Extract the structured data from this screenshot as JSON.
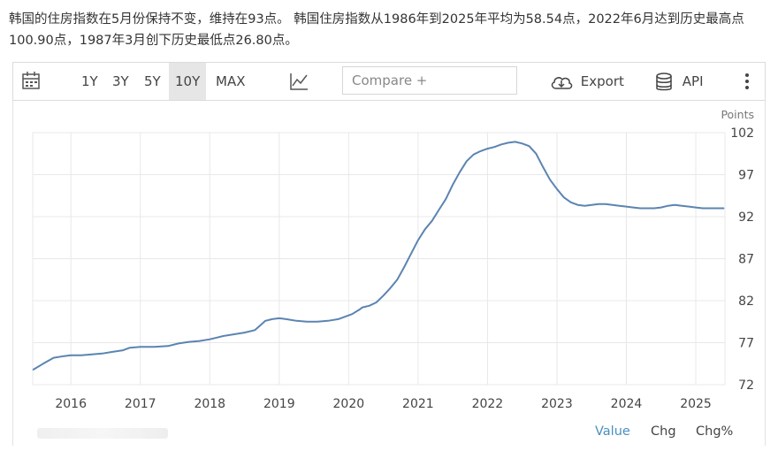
{
  "headline": "韩国的住房指数在5月份保持不变，维持在93点。 韩国住房指数从1986年到2025年平均为58.54点，2022年6月达到历史最高点100.90点，1987年3月创下历史最低点26.80点。",
  "toolbar": {
    "ranges": [
      {
        "label": "1Y",
        "active": false
      },
      {
        "label": "3Y",
        "active": false
      },
      {
        "label": "5Y",
        "active": false
      },
      {
        "label": "10Y",
        "active": true
      },
      {
        "label": "MAX",
        "active": false
      }
    ],
    "compare_placeholder": "Compare +",
    "export_label": "Export",
    "api_label": "API",
    "icons": [
      "calendar-icon",
      "line-chart-icon",
      "cloud-download-icon",
      "database-icon",
      "more-vertical-icon"
    ]
  },
  "bottom_tabs": [
    {
      "label": "Value",
      "active": true
    },
    {
      "label": "Chg",
      "active": false
    },
    {
      "label": "Chg%",
      "active": false
    }
  ],
  "colors": {
    "line": "#5b84b1",
    "grid": "#e8e8e8",
    "active_tab": "#4a8fc1"
  },
  "chart_data": {
    "type": "line",
    "units_label": "Points",
    "ylim": [
      72,
      102
    ],
    "yticks": [
      102,
      97,
      92,
      87,
      82,
      77,
      72
    ],
    "xlim": [
      2015.45,
      2025.42
    ],
    "xticks": [
      2016,
      2017,
      2018,
      2019,
      2020,
      2021,
      2022,
      2023,
      2024,
      2025
    ],
    "grid": true,
    "axis_position": "right",
    "series": [
      {
        "x": [
          2015.46,
          2015.6,
          2015.75,
          2015.9,
          2016.0,
          2016.15,
          2016.3,
          2016.45,
          2016.6,
          2016.75,
          2016.85,
          2017.0,
          2017.2,
          2017.4,
          2017.55,
          2017.7,
          2017.85,
          2018.0,
          2018.1,
          2018.2,
          2018.35,
          2018.5,
          2018.65,
          2018.72,
          2018.8,
          2018.9,
          2019.0,
          2019.1,
          2019.25,
          2019.4,
          2019.55,
          2019.7,
          2019.85,
          2019.95,
          2020.05,
          2020.15,
          2020.2,
          2020.3,
          2020.4,
          2020.5,
          2020.6,
          2020.7,
          2020.8,
          2020.9,
          2021.0,
          2021.1,
          2021.2,
          2021.3,
          2021.4,
          2021.5,
          2021.6,
          2021.7,
          2021.8,
          2021.9,
          2022.0,
          2022.1,
          2022.2,
          2022.3,
          2022.4,
          2022.5,
          2022.6,
          2022.7,
          2022.8,
          2022.9,
          2023.0,
          2023.1,
          2023.2,
          2023.3,
          2023.4,
          2023.5,
          2023.6,
          2023.7,
          2023.8,
          2023.9,
          2024.0,
          2024.1,
          2024.2,
          2024.3,
          2024.4,
          2024.5,
          2024.6,
          2024.7,
          2024.8,
          2024.9,
          2025.0,
          2025.1,
          2025.2,
          2025.3,
          2025.4
        ],
        "y": [
          73.8,
          74.5,
          75.2,
          75.4,
          75.5,
          75.5,
          75.6,
          75.7,
          75.9,
          76.1,
          76.4,
          76.5,
          76.5,
          76.6,
          76.9,
          77.1,
          77.2,
          77.4,
          77.6,
          77.8,
          78.0,
          78.2,
          78.5,
          79.0,
          79.6,
          79.8,
          79.9,
          79.8,
          79.6,
          79.5,
          79.5,
          79.6,
          79.8,
          80.1,
          80.4,
          80.9,
          81.2,
          81.4,
          81.8,
          82.6,
          83.5,
          84.5,
          86.0,
          87.6,
          89.2,
          90.5,
          91.5,
          92.8,
          94.1,
          95.8,
          97.3,
          98.6,
          99.4,
          99.8,
          100.1,
          100.3,
          100.6,
          100.8,
          100.9,
          100.7,
          100.4,
          99.5,
          97.9,
          96.4,
          95.3,
          94.3,
          93.7,
          93.4,
          93.3,
          93.4,
          93.5,
          93.5,
          93.4,
          93.3,
          93.2,
          93.1,
          93.0,
          93.0,
          93.0,
          93.1,
          93.3,
          93.4,
          93.3,
          93.2,
          93.1,
          93.0,
          93.0,
          93.0,
          93.0
        ]
      }
    ]
  }
}
